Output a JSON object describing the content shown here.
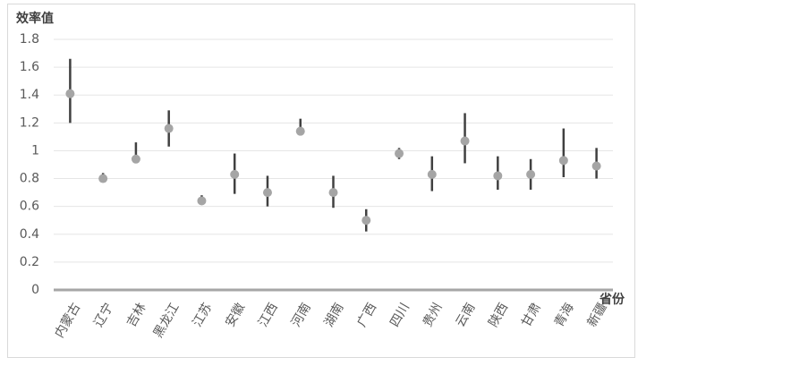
{
  "chart_data": {
    "type": "errorpoint",
    "y_label": "效率值",
    "x_label": "省份",
    "categories": [
      "内蒙古",
      "辽宁",
      "吉林",
      "黑龙江",
      "江苏",
      "安徽",
      "江西",
      "河南",
      "湖南",
      "广西",
      "四川",
      "贵州",
      "云南",
      "陕西",
      "甘肃",
      "青海",
      "新疆"
    ],
    "values": [
      1.41,
      0.8,
      0.94,
      1.16,
      0.64,
      0.83,
      0.7,
      1.14,
      0.7,
      0.5,
      0.98,
      0.83,
      1.07,
      0.82,
      0.83,
      0.93,
      0.89
    ],
    "low": [
      1.2,
      0.78,
      0.92,
      1.03,
      0.62,
      0.69,
      0.6,
      1.13,
      0.59,
      0.42,
      0.94,
      0.71,
      0.91,
      0.72,
      0.72,
      0.81,
      0.8
    ],
    "high": [
      1.66,
      0.84,
      1.06,
      1.29,
      0.68,
      0.98,
      0.82,
      1.23,
      0.82,
      0.58,
      1.02,
      0.96,
      1.27,
      0.96,
      0.94,
      1.16,
      1.02
    ],
    "color": "#a5a5a5",
    "bar_color": "#404040",
    "ylim": [
      0,
      1.8
    ],
    "yticks": [
      0,
      {
        "value": 0.2,
        "label": "0.2"
      },
      {
        "value": 0.4,
        "label": "0.4"
      },
      {
        "value": 0.6,
        "label": "0.6"
      },
      {
        "value": 0.8,
        "label": "0.8"
      },
      1,
      {
        "value": 1.2,
        "label": "1.2"
      },
      {
        "value": 1.4,
        "label": "1.4"
      },
      {
        "value": 1.6,
        "label": "1.6"
      },
      {
        "value": 1.8,
        "label": "1.8"
      }
    ],
    "grid": true
  }
}
